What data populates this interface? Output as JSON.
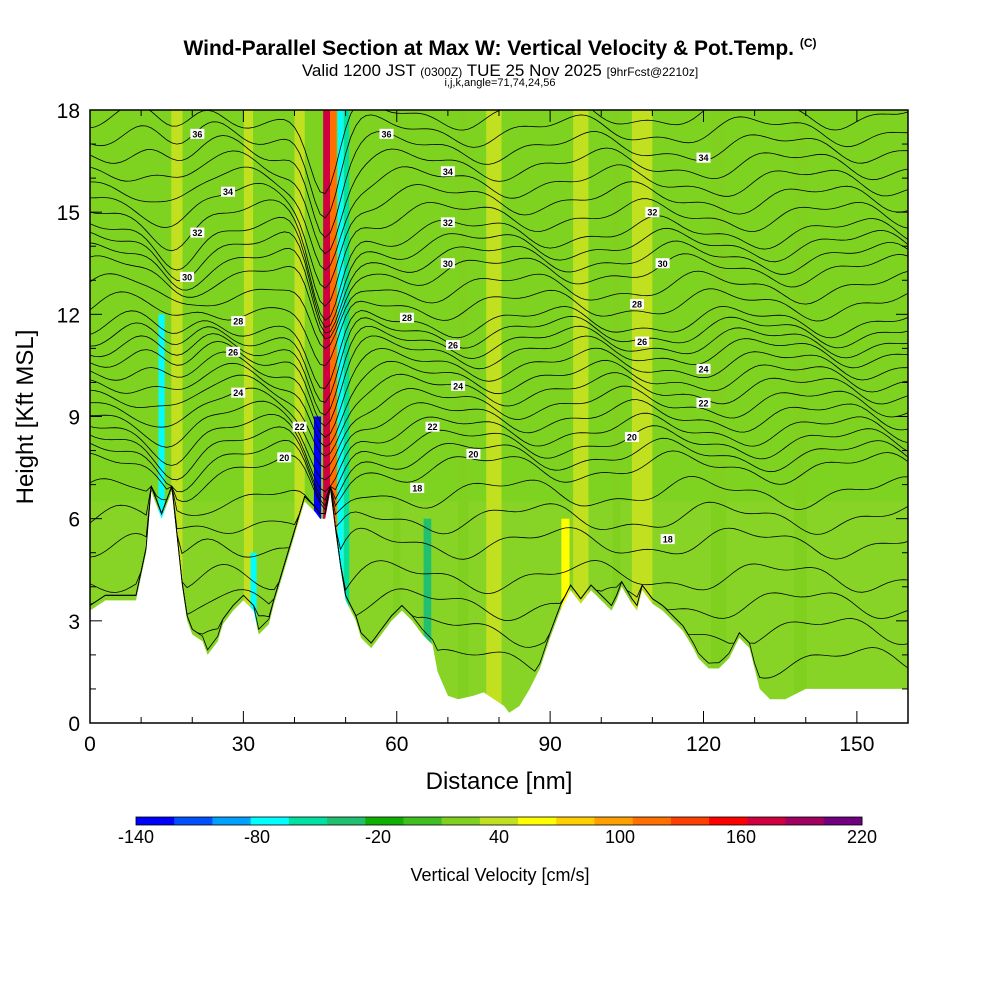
{
  "header": {
    "title": "Wind-Parallel Section at Max W: Vertical Velocity & Pot.Temp.",
    "copyright": "(C)",
    "subtitle_main": "Valid 1200 JST",
    "subtitle_utc": "(0300Z)",
    "subtitle_date": "TUE 25 Nov 2025",
    "subtitle_fcst": "[9hrFcst@2210z]",
    "params": "i,j,k,angle=71,74,24,56"
  },
  "chart_data": {
    "type": "heatmap",
    "title": "Wind-Parallel Section at Max W: Vertical Velocity & Pot.Temp.",
    "xlabel": "Distance [nm]",
    "ylabel": "Height [Kft MSL]",
    "xlim": [
      0,
      160
    ],
    "ylim": [
      0,
      18
    ],
    "xticks": [
      0,
      30,
      60,
      90,
      120,
      150
    ],
    "yticks": [
      0,
      3,
      6,
      9,
      12,
      15,
      18
    ],
    "xtick_labels": [
      "0",
      "30",
      "60",
      "90",
      "120",
      "150"
    ],
    "ytick_labels": [
      "0",
      "3",
      "6",
      "9",
      "12",
      "15",
      "18"
    ],
    "colorbar": {
      "label": "Vertical Velocity [cm/s]",
      "tick_values": [
        -140,
        -80,
        -20,
        40,
        100,
        160,
        220
      ],
      "tick_labels": [
        "-140",
        "-80",
        "-20",
        "40",
        "100",
        "160",
        "220"
      ],
      "colors": [
        "#0000ff",
        "#0050ff",
        "#00a0ff",
        "#00ffff",
        "#00e0a0",
        "#20c070",
        "#10b000",
        "#40c020",
        "#80d020",
        "#c0e020",
        "#ffff00",
        "#ffd000",
        "#ffa000",
        "#ff7000",
        "#ff4000",
        "#ff0000",
        "#d00040",
        "#a00060",
        "#700080"
      ]
    },
    "terrain": [
      [
        0,
        3.3
      ],
      [
        3,
        3.6
      ],
      [
        9,
        3.6
      ],
      [
        11,
        5
      ],
      [
        12,
        6.8
      ],
      [
        14,
        6
      ],
      [
        16,
        6.8
      ],
      [
        18,
        4
      ],
      [
        19,
        3
      ],
      [
        20,
        2.6
      ],
      [
        22,
        2.4
      ],
      [
        23,
        2
      ],
      [
        25,
        2.4
      ],
      [
        26,
        2.9
      ],
      [
        28,
        3.3
      ],
      [
        30,
        3.6
      ],
      [
        32,
        3.3
      ],
      [
        33,
        2.6
      ],
      [
        35,
        2.9
      ],
      [
        36,
        3.5
      ],
      [
        38,
        4.5
      ],
      [
        40,
        5.5
      ],
      [
        42,
        6.5
      ],
      [
        44,
        6.2
      ],
      [
        45,
        6
      ],
      [
        46,
        6
      ],
      [
        47,
        6.8
      ],
      [
        48,
        5.6
      ],
      [
        49,
        4.5
      ],
      [
        50,
        3.6
      ],
      [
        52,
        3
      ],
      [
        53,
        2.5
      ],
      [
        55,
        2.2
      ],
      [
        57,
        2.6
      ],
      [
        59,
        3
      ],
      [
        61,
        3.3
      ],
      [
        63,
        3
      ],
      [
        65,
        2.6
      ],
      [
        67,
        2.3
      ],
      [
        68,
        1.5
      ],
      [
        70,
        0.8
      ],
      [
        72,
        0.7
      ],
      [
        75,
        0.8
      ],
      [
        77,
        0.9
      ],
      [
        79,
        0.7
      ],
      [
        81,
        0.5
      ],
      [
        82,
        0.3
      ],
      [
        84,
        0.5
      ],
      [
        86,
        1
      ],
      [
        88,
        1.6
      ],
      [
        90,
        2.5
      ],
      [
        92,
        3.3
      ],
      [
        94,
        3.9
      ],
      [
        96,
        3.5
      ],
      [
        98,
        3.9
      ],
      [
        100,
        3.6
      ],
      [
        102,
        3.3
      ],
      [
        103,
        3.6
      ],
      [
        104,
        4
      ],
      [
        106,
        3.5
      ],
      [
        107,
        3.3
      ],
      [
        108,
        3.9
      ],
      [
        110,
        3.5
      ],
      [
        112,
        3.3
      ],
      [
        114,
        3
      ],
      [
        116,
        2.7
      ],
      [
        118,
        2.2
      ],
      [
        119,
        1.9
      ],
      [
        121,
        1.6
      ],
      [
        123,
        1.6
      ],
      [
        125,
        1.9
      ],
      [
        127,
        2.5
      ],
      [
        129,
        2.2
      ],
      [
        130,
        1.6
      ],
      [
        131,
        1
      ],
      [
        133,
        0.7
      ],
      [
        136,
        0.7
      ],
      [
        140,
        1
      ],
      [
        145,
        1
      ],
      [
        150,
        1
      ],
      [
        155,
        1
      ],
      [
        160,
        1
      ]
    ],
    "theta_contours": [
      {
        "label": "18",
        "base": 5.3
      },
      {
        "label": "20",
        "base": 7.5
      },
      {
        "label": "22",
        "base": 8.6
      },
      {
        "label": "24",
        "base": 9.8
      },
      {
        "label": "26",
        "base": 10.9
      },
      {
        "label": "28",
        "base": 11.8
      },
      {
        "label": "30",
        "base": 13.3
      },
      {
        "label": "32",
        "base": 14.4
      },
      {
        "label": "34",
        "base": 15.9
      },
      {
        "label": "36",
        "base": 17.4
      }
    ],
    "contour_labels": [
      {
        "text": "36",
        "x": 21,
        "y": 17.3
      },
      {
        "text": "36",
        "x": 58,
        "y": 17.3
      },
      {
        "text": "34",
        "x": 27,
        "y": 15.6
      },
      {
        "text": "34",
        "x": 70,
        "y": 16.2
      },
      {
        "text": "34",
        "x": 120,
        "y": 16.6
      },
      {
        "text": "32",
        "x": 21,
        "y": 14.4
      },
      {
        "text": "32",
        "x": 70,
        "y": 14.7
      },
      {
        "text": "32",
        "x": 110,
        "y": 15
      },
      {
        "text": "30",
        "x": 19,
        "y": 13.1
      },
      {
        "text": "30",
        "x": 70,
        "y": 13.5
      },
      {
        "text": "30",
        "x": 112,
        "y": 13.5
      },
      {
        "text": "28",
        "x": 29,
        "y": 11.8
      },
      {
        "text": "28",
        "x": 62,
        "y": 11.9
      },
      {
        "text": "28",
        "x": 107,
        "y": 12.3
      },
      {
        "text": "26",
        "x": 28,
        "y": 10.9
      },
      {
        "text": "26",
        "x": 71,
        "y": 11.1
      },
      {
        "text": "26",
        "x": 108,
        "y": 11.2
      },
      {
        "text": "24",
        "x": 29,
        "y": 9.7
      },
      {
        "text": "24",
        "x": 72,
        "y": 9.9
      },
      {
        "text": "24",
        "x": 120,
        "y": 10.4
      },
      {
        "text": "22",
        "x": 41,
        "y": 8.7
      },
      {
        "text": "22",
        "x": 67,
        "y": 8.7
      },
      {
        "text": "22",
        "x": 120,
        "y": 9.4
      },
      {
        "text": "20",
        "x": 38,
        "y": 7.8
      },
      {
        "text": "20",
        "x": 75,
        "y": 7.9
      },
      {
        "text": "20",
        "x": 106,
        "y": 8.4
      },
      {
        "text": "18",
        "x": 64,
        "y": 6.9
      },
      {
        "text": "18",
        "x": 113,
        "y": 5.4
      }
    ],
    "w_features": [
      {
        "x": 17,
        "width": 2.2,
        "value": 45,
        "ztop": 18
      },
      {
        "x": 14,
        "width": 1.2,
        "value": -80,
        "ztop": 12
      },
      {
        "x": 31,
        "width": 1.8,
        "value": 40,
        "ztop": 18
      },
      {
        "x": 32,
        "width": 1.2,
        "value": -80,
        "ztop": 5
      },
      {
        "x": 41,
        "width": 2,
        "value": 40,
        "ztop": 18
      },
      {
        "x": 44.5,
        "width": 1.4,
        "value": -140,
        "ztop": 9
      },
      {
        "x": 46.3,
        "width": 1.4,
        "value": 180,
        "ztop": 18
      },
      {
        "x": 47.6,
        "width": 1.3,
        "value": 120,
        "ztop": 18
      },
      {
        "x": 49,
        "width": 1.2,
        "value": -80,
        "ztop": 18
      },
      {
        "x": 50.2,
        "width": 1.0,
        "value": -60,
        "ztop": 18
      },
      {
        "x": 66,
        "width": 1.5,
        "value": -40,
        "ztop": 6
      },
      {
        "x": 79,
        "width": 3,
        "value": 40,
        "ztop": 18
      },
      {
        "x": 93,
        "width": 1.6,
        "value": 55,
        "ztop": 6
      },
      {
        "x": 96,
        "width": 3,
        "value": 45,
        "ztop": 18
      },
      {
        "x": 108,
        "width": 4,
        "value": 35,
        "ztop": 18
      },
      {
        "x": 123,
        "width": 3,
        "value": 30,
        "ztop": 18
      },
      {
        "x": 139,
        "width": 2.5,
        "value": 25,
        "ztop": 18
      },
      {
        "x": 60,
        "width": 1.5,
        "value": 30,
        "ztop": 18
      },
      {
        "x": 73,
        "width": 2,
        "value": 30,
        "ztop": 18
      },
      {
        "x": 103,
        "width": 1.5,
        "value": 30,
        "ztop": 18
      }
    ]
  }
}
